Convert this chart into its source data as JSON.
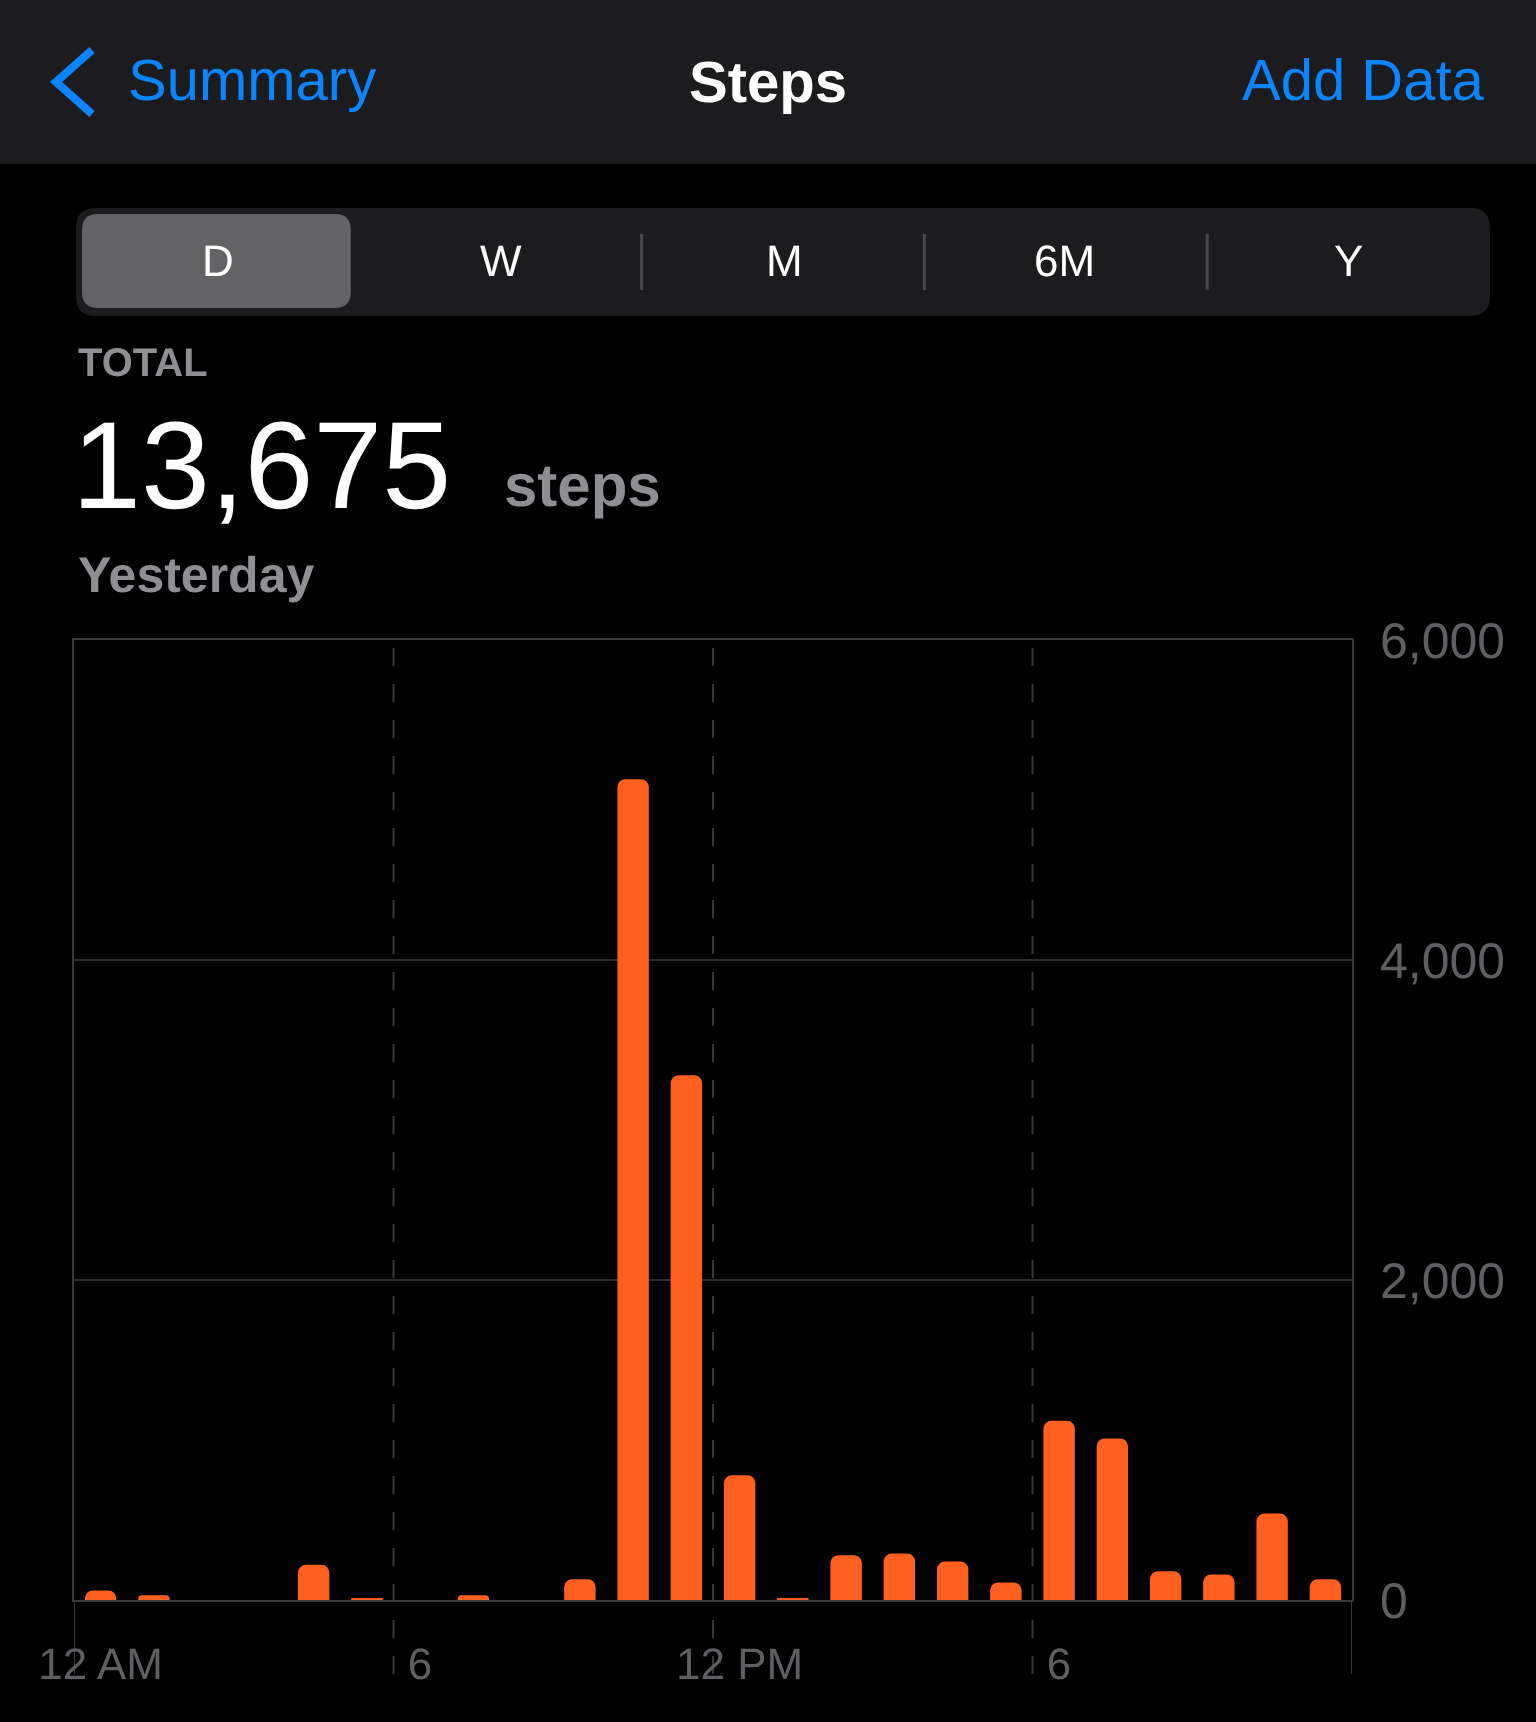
{
  "chart_data": {
    "type": "bar",
    "title": "Steps",
    "annotations": [
      "Summary",
      "Add Data",
      "D",
      "W",
      "M",
      "6M",
      "Y",
      "TOTAL",
      "13,675",
      "steps",
      "Yesterday"
    ],
    "categories": [
      "12 AM",
      null,
      null,
      null,
      null,
      null,
      "6",
      null,
      null,
      null,
      null,
      null,
      "12 PM",
      null,
      null,
      null,
      null,
      null,
      "6",
      null,
      null,
      null,
      null,
      null
    ],
    "values": [
      60,
      30,
      null,
      null,
      220,
      10,
      null,
      30,
      null,
      130,
      5130,
      3280,
      780,
      10,
      280,
      290,
      240,
      110,
      1120,
      1010,
      180,
      160,
      540,
      130
    ],
    "color": "#ff5f1f",
    "ylim": [
      0,
      6000
    ],
    "yticks": [
      0,
      {
        "value": 2000,
        "label": "2,000"
      },
      {
        "value": 4000,
        "label": "4,000"
      },
      {
        "value": 6000,
        "label": "6,000"
      }
    ],
    "grid": true
  }
}
